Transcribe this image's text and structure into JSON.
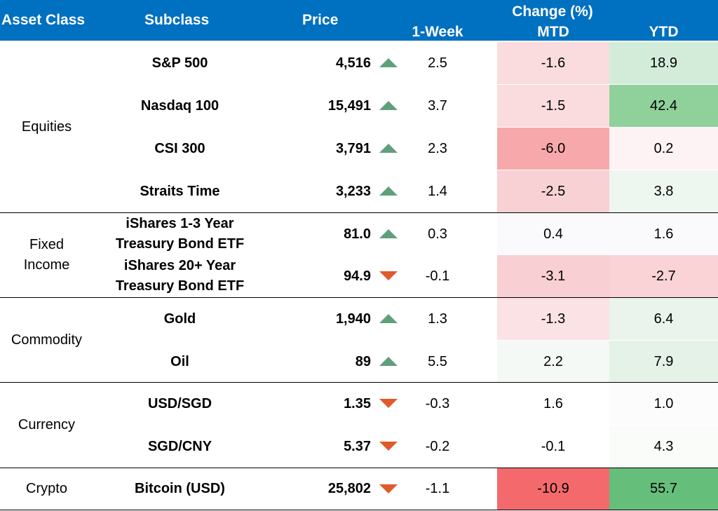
{
  "header": {
    "asset_class": "Asset Class",
    "subclass": "Subclass",
    "price": "Price",
    "change_group": "Change (%)",
    "week": "1-Week",
    "mtd": "MTD",
    "ytd": "YTD"
  },
  "colors": {
    "header_bg": "#0070c0",
    "up_arrow": "#5fa07a",
    "down_arrow": "#e05a2b"
  },
  "groups": [
    {
      "label": "Equities"
    },
    {
      "label": "Fixed\nIncome"
    },
    {
      "label": "Commodity"
    },
    {
      "label": "Currency"
    },
    {
      "label": "Crypto"
    }
  ],
  "rows": [
    {
      "subclass": "S&P 500",
      "price": "4,516",
      "direction": "up",
      "week": "2.5",
      "mtd": "-1.6",
      "ytd": "18.9",
      "mtd_color": "#fadcdf",
      "ytd_color": "#d3ecd9"
    },
    {
      "subclass": "Nasdaq 100",
      "price": "15,491",
      "direction": "up",
      "week": "3.7",
      "mtd": "-1.5",
      "ytd": "42.4",
      "mtd_color": "#fadcdf",
      "ytd_color": "#8fd09b"
    },
    {
      "subclass": "CSI 300",
      "price": "3,791",
      "direction": "up",
      "week": "2.3",
      "mtd": "-6.0",
      "ytd": "0.2",
      "mtd_color": "#f7a8ab",
      "ytd_color": "#fdf3f4"
    },
    {
      "subclass": "Straits Time",
      "price": "3,233",
      "direction": "up",
      "week": "1.4",
      "mtd": "-2.5",
      "ytd": "3.8",
      "mtd_color": "#f8d1d4",
      "ytd_color": "#eef6f0"
    },
    {
      "subclass": "iShares 1-3 Year\nTreasury Bond ETF",
      "price": "81.0",
      "direction": "up",
      "week": "0.3",
      "mtd": "0.4",
      "ytd": "1.6",
      "mtd_color": "#fafafc",
      "ytd_color": "#fafafc"
    },
    {
      "subclass": "iShares 20+ Year\nTreasury Bond ETF",
      "price": "94.9",
      "direction": "down",
      "week": "-0.1",
      "mtd": "-3.1",
      "ytd": "-2.7",
      "mtd_color": "#f8cfd2",
      "ytd_color": "#f9d3d6"
    },
    {
      "subclass": "Gold",
      "price": "1,940",
      "direction": "up",
      "week": "1.3",
      "mtd": "-1.3",
      "ytd": "6.4",
      "mtd_color": "#fbe2e4",
      "ytd_color": "#eaf4ec"
    },
    {
      "subclass": "Oil",
      "price": "89",
      "direction": "up",
      "week": "5.5",
      "mtd": "2.2",
      "ytd": "7.9",
      "mtd_color": "#f4f9f5",
      "ytd_color": "#e5f2e8"
    },
    {
      "subclass": "USD/SGD",
      "price": "1.35",
      "direction": "down",
      "week": "-0.3",
      "mtd": "1.6",
      "ytd": "1.0",
      "mtd_color": "#ffffff",
      "ytd_color": "#fcfcfc"
    },
    {
      "subclass": "SGD/CNY",
      "price": "5.37",
      "direction": "down",
      "week": "-0.2",
      "mtd": "-0.1",
      "ytd": "4.3",
      "mtd_color": "#ffffff",
      "ytd_color": "#fafcfa"
    },
    {
      "subclass": "Bitcoin (USD)",
      "price": "25,802",
      "direction": "down",
      "week": "-1.1",
      "mtd": "-10.9",
      "ytd": "55.7",
      "mtd_color": "#f46a6c",
      "ytd_color": "#66be7b"
    }
  ]
}
